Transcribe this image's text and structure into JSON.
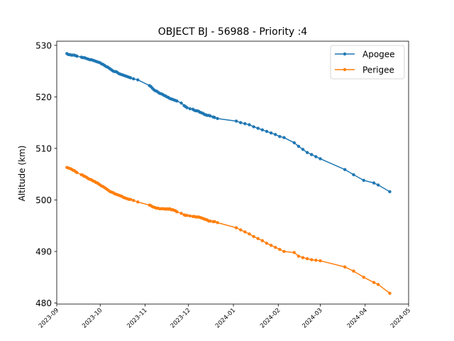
{
  "chart_data": {
    "type": "line",
    "title": "OBJECT BJ - 56988 - Priority :4",
    "xlabel": "",
    "ylabel": "Altitude (km)",
    "x_type": "date",
    "xlim": [
      "2023-09-01",
      "2024-05-01"
    ],
    "ylim": [
      479.8,
      530.8
    ],
    "x_ticks": [
      "2023-09",
      "2023-10",
      "2023-11",
      "2023-12",
      "2024-01",
      "2024-02",
      "2024-03",
      "2024-04",
      "2024-05"
    ],
    "y_ticks": [
      480,
      490,
      500,
      510,
      520,
      530
    ],
    "grid": false,
    "legend_position": "top-right",
    "colors": {
      "Apogee": "#1f77b4",
      "Perigee": "#ff7f0e"
    },
    "series": [
      {
        "name": "Apogee",
        "marker": "circle",
        "x": [
          "2023-09-08",
          "2023-09-09",
          "2023-09-10",
          "2023-09-11",
          "2023-09-12",
          "2023-09-13",
          "2023-09-14",
          "2023-09-15",
          "2023-09-18",
          "2023-09-19",
          "2023-09-20",
          "2023-09-21",
          "2023-09-22",
          "2023-09-23",
          "2023-09-24",
          "2023-09-25",
          "2023-09-26",
          "2023-09-27",
          "2023-09-28",
          "2023-09-29",
          "2023-09-30",
          "2023-10-01",
          "2023-10-02",
          "2023-10-03",
          "2023-10-04",
          "2023-10-05",
          "2023-10-06",
          "2023-10-07",
          "2023-10-08",
          "2023-10-09",
          "2023-10-10",
          "2023-10-11",
          "2023-10-12",
          "2023-10-13",
          "2023-10-14",
          "2023-10-15",
          "2023-10-16",
          "2023-10-17",
          "2023-10-18",
          "2023-10-19",
          "2023-10-20",
          "2023-10-21",
          "2023-10-22",
          "2023-10-24",
          "2023-10-27",
          "2023-11-04",
          "2023-11-05",
          "2023-11-06",
          "2023-11-07",
          "2023-11-08",
          "2023-11-09",
          "2023-11-10",
          "2023-11-11",
          "2023-11-12",
          "2023-11-13",
          "2023-11-14",
          "2023-11-15",
          "2023-11-16",
          "2023-11-17",
          "2023-11-18",
          "2023-11-19",
          "2023-11-20",
          "2023-11-21",
          "2023-11-22",
          "2023-11-23",
          "2023-11-26",
          "2023-11-28",
          "2023-11-29",
          "2023-11-30",
          "2023-12-02",
          "2023-12-04",
          "2023-12-05",
          "2023-12-06",
          "2023-12-07",
          "2023-12-08",
          "2023-12-09",
          "2023-12-10",
          "2023-12-11",
          "2023-12-12",
          "2023-12-13",
          "2023-12-14",
          "2023-12-15",
          "2023-12-16",
          "2023-12-18",
          "2023-12-19",
          "2023-12-21",
          "2024-01-03",
          "2024-01-06",
          "2024-01-09",
          "2024-01-12",
          "2024-01-15",
          "2024-01-18",
          "2024-01-21",
          "2024-01-24",
          "2024-01-27",
          "2024-01-30",
          "2024-02-02",
          "2024-02-05",
          "2024-02-12",
          "2024-02-15",
          "2024-02-18",
          "2024-02-21",
          "2024-02-24",
          "2024-02-27",
          "2024-03-01",
          "2024-03-18",
          "2024-03-24",
          "2024-03-31",
          "2024-04-07",
          "2024-04-10",
          "2024-04-18"
        ],
        "values": [
          528.4,
          528.2,
          528.2,
          528.1,
          528.1,
          528.1,
          528.0,
          527.9,
          527.7,
          527.6,
          527.6,
          527.5,
          527.4,
          527.3,
          527.2,
          527.2,
          527.1,
          527.0,
          526.9,
          526.8,
          526.7,
          526.6,
          526.4,
          526.3,
          526.1,
          525.9,
          525.8,
          525.6,
          525.4,
          525.2,
          525.0,
          524.9,
          524.9,
          524.7,
          524.5,
          524.4,
          524.3,
          524.2,
          524.1,
          524.0,
          523.9,
          523.8,
          523.7,
          523.5,
          523.3,
          522.2,
          522.0,
          521.7,
          521.4,
          521.2,
          521.1,
          520.9,
          520.7,
          520.6,
          520.5,
          520.3,
          520.2,
          520.0,
          519.9,
          519.7,
          519.6,
          519.5,
          519.4,
          519.3,
          519.2,
          518.8,
          518.3,
          518.1,
          517.9,
          517.7,
          517.6,
          517.4,
          517.3,
          517.3,
          517.2,
          517.0,
          516.9,
          516.8,
          516.6,
          516.5,
          516.4,
          516.4,
          516.3,
          516.1,
          516.0,
          515.8,
          515.3,
          515.0,
          514.8,
          514.6,
          514.2,
          513.9,
          513.6,
          513.3,
          513.0,
          512.7,
          512.3,
          512.1,
          511.1,
          510.4,
          509.8,
          509.2,
          508.8,
          508.4,
          508.0,
          505.9,
          504.9,
          503.8,
          503.3,
          502.9,
          501.6
        ]
      },
      {
        "name": "Perigee",
        "marker": "circle",
        "x": [
          "2023-09-08",
          "2023-09-09",
          "2023-09-10",
          "2023-09-11",
          "2023-09-12",
          "2023-09-13",
          "2023-09-14",
          "2023-09-15",
          "2023-09-18",
          "2023-09-19",
          "2023-09-20",
          "2023-09-21",
          "2023-09-22",
          "2023-09-23",
          "2023-09-24",
          "2023-09-25",
          "2023-09-26",
          "2023-09-27",
          "2023-09-28",
          "2023-09-29",
          "2023-09-30",
          "2023-10-01",
          "2023-10-02",
          "2023-10-03",
          "2023-10-04",
          "2023-10-05",
          "2023-10-06",
          "2023-10-07",
          "2023-10-08",
          "2023-10-09",
          "2023-10-10",
          "2023-10-11",
          "2023-10-12",
          "2023-10-13",
          "2023-10-14",
          "2023-10-15",
          "2023-10-16",
          "2023-10-17",
          "2023-10-18",
          "2023-10-19",
          "2023-10-20",
          "2023-10-21",
          "2023-10-22",
          "2023-10-24",
          "2023-10-27",
          "2023-11-04",
          "2023-11-05",
          "2023-11-06",
          "2023-11-07",
          "2023-11-08",
          "2023-11-09",
          "2023-11-10",
          "2023-11-11",
          "2023-11-12",
          "2023-11-13",
          "2023-11-14",
          "2023-11-15",
          "2023-11-16",
          "2023-11-17",
          "2023-11-18",
          "2023-11-19",
          "2023-11-20",
          "2023-11-21",
          "2023-11-22",
          "2023-11-23",
          "2023-11-26",
          "2023-11-28",
          "2023-11-29",
          "2023-11-30",
          "2023-12-02",
          "2023-12-04",
          "2023-12-05",
          "2023-12-06",
          "2023-12-07",
          "2023-12-08",
          "2023-12-09",
          "2023-12-10",
          "2023-12-11",
          "2023-12-12",
          "2023-12-13",
          "2023-12-14",
          "2023-12-15",
          "2023-12-16",
          "2023-12-18",
          "2023-12-19",
          "2023-12-21",
          "2024-01-03",
          "2024-01-06",
          "2024-01-09",
          "2024-01-12",
          "2024-01-15",
          "2024-01-18",
          "2024-01-21",
          "2024-01-24",
          "2024-01-27",
          "2024-01-30",
          "2024-02-02",
          "2024-02-05",
          "2024-02-12",
          "2024-02-15",
          "2024-02-18",
          "2024-02-21",
          "2024-02-24",
          "2024-02-27",
          "2024-03-01",
          "2024-03-18",
          "2024-03-24",
          "2024-03-31",
          "2024-04-07",
          "2024-04-10",
          "2024-04-18"
        ],
        "values": [
          506.3,
          506.2,
          506.1,
          506.0,
          505.8,
          505.7,
          505.5,
          505.3,
          504.9,
          504.8,
          504.6,
          504.5,
          504.3,
          504.1,
          504.0,
          503.9,
          503.7,
          503.6,
          503.4,
          503.3,
          503.1,
          502.9,
          502.7,
          502.6,
          502.4,
          502.2,
          502.0,
          501.8,
          501.6,
          501.5,
          501.4,
          501.2,
          501.1,
          501.0,
          500.9,
          500.8,
          500.7,
          500.5,
          500.4,
          500.3,
          500.2,
          500.1,
          500.1,
          499.9,
          499.6,
          499.0,
          498.9,
          498.7,
          498.6,
          498.5,
          498.4,
          498.4,
          498.3,
          498.3,
          498.3,
          498.3,
          498.2,
          498.3,
          498.2,
          498.3,
          498.1,
          498.1,
          498.0,
          497.9,
          497.7,
          497.4,
          497.1,
          497.0,
          497.0,
          496.9,
          496.8,
          496.8,
          496.7,
          496.7,
          496.7,
          496.6,
          496.5,
          496.4,
          496.3,
          496.2,
          496.1,
          495.9,
          495.9,
          495.8,
          495.8,
          495.6,
          494.6,
          494.2,
          493.8,
          493.4,
          492.9,
          492.5,
          492.1,
          491.6,
          491.2,
          490.8,
          490.4,
          490.0,
          489.8,
          489.1,
          488.8,
          488.6,
          488.4,
          488.3,
          488.2,
          487.0,
          486.2,
          485.0,
          484.0,
          483.6,
          481.9
        ]
      }
    ]
  }
}
